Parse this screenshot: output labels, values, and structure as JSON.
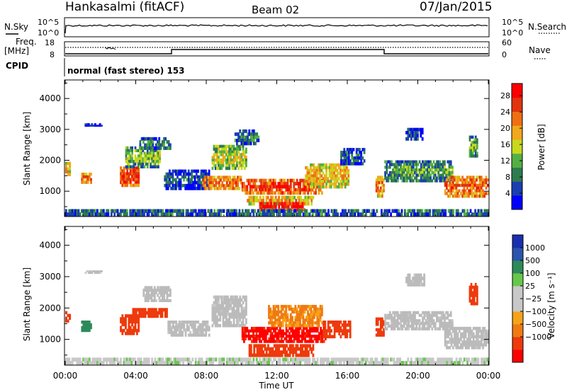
{
  "header": {
    "radar": "Hankasalmi (fitACF)",
    "beam": "Beam 02",
    "date": "07/Jan/2015"
  },
  "status_panels": {
    "nsky_label": "N.Sky",
    "nsearch_label": "N.Search",
    "nsky_ticks": [
      "10^5",
      "10^0"
    ],
    "nsearch_ticks": [
      "10^5",
      "10^0"
    ],
    "freq_label_line1": "Freq.",
    "freq_label_line2": "[MHz]",
    "freq_ticks": [
      "18",
      "8"
    ],
    "nave_label": "Nave",
    "nave_ticks": [
      "60",
      "0"
    ],
    "cpid_label": "CPID",
    "cpid_text": "normal (fast stereo) 153"
  },
  "colors": {
    "power_scale": [
      "#0000ff",
      "#1a3fb0",
      "#2e7b4f",
      "#55b043",
      "#c7d81e",
      "#f0a81c",
      "#ee6f14",
      "#e0340f",
      "#ff0000"
    ],
    "velocity_scale": [
      "#ff0000",
      "#ee3a0c",
      "#f07a12",
      "#f6a31a",
      "#c8c8c8",
      "#c8c8c8",
      "#66c84a",
      "#2e8a5a",
      "#2a54ad",
      "#1a2fb0"
    ],
    "ground_scatter": "#bbbbbb"
  },
  "chart_data": [
    {
      "type": "heatmap",
      "name": "power-panel",
      "ylabel": "Slant Range [km]",
      "xlim": [
        0,
        24
      ],
      "ylim": [
        180,
        4600
      ],
      "y_ticks": [
        1000,
        2000,
        3000,
        4000
      ],
      "colorbar": {
        "label": "Power [dB]",
        "ticks": [
          "4",
          "8",
          "12",
          "16",
          "20",
          "24",
          "28"
        ],
        "range": [
          0,
          31
        ]
      },
      "regions": [
        {
          "t0": 0.0,
          "t1": 0.3,
          "r0": 1500,
          "r1": 1950,
          "v": 19
        },
        {
          "t0": 0.9,
          "t1": 1.5,
          "r0": 1250,
          "r1": 1600,
          "v": 24
        },
        {
          "t0": 1.1,
          "t1": 2.1,
          "r0": 3100,
          "r1": 3200,
          "v": 5
        },
        {
          "t0": 3.1,
          "t1": 4.2,
          "r0": 1150,
          "r1": 1800,
          "v": 27
        },
        {
          "t0": 3.4,
          "t1": 5.4,
          "r0": 1750,
          "r1": 2450,
          "v": 14
        },
        {
          "t0": 4.2,
          "t1": 6.0,
          "r0": 2350,
          "r1": 2750,
          "v": 10
        },
        {
          "t0": 5.6,
          "t1": 8.2,
          "r0": 1050,
          "r1": 1700,
          "v": 7
        },
        {
          "t0": 7.8,
          "t1": 10.0,
          "r0": 1050,
          "r1": 1500,
          "v": 24
        },
        {
          "t0": 8.3,
          "t1": 10.3,
          "r0": 1700,
          "r1": 2500,
          "v": 16
        },
        {
          "t0": 9.6,
          "t1": 11.0,
          "r0": 2500,
          "r1": 3000,
          "v": 9
        },
        {
          "t0": 10.0,
          "t1": 14.6,
          "r0": 900,
          "r1": 1400,
          "v": 27
        },
        {
          "t0": 10.3,
          "t1": 14.1,
          "r0": 550,
          "r1": 850,
          "v": 20
        },
        {
          "t0": 11.0,
          "t1": 13.6,
          "r0": 350,
          "r1": 650,
          "v": 29
        },
        {
          "t0": 13.6,
          "t1": 16.1,
          "r0": 1100,
          "r1": 1900,
          "v": 20
        },
        {
          "t0": 15.6,
          "t1": 17.0,
          "r0": 1850,
          "r1": 2400,
          "v": 8
        },
        {
          "t0": 17.6,
          "t1": 18.1,
          "r0": 800,
          "r1": 1500,
          "v": 22
        },
        {
          "t0": 18.1,
          "t1": 22.0,
          "r0": 1300,
          "r1": 2000,
          "v": 12
        },
        {
          "t0": 19.3,
          "t1": 20.3,
          "r0": 2650,
          "r1": 3050,
          "v": 8
        },
        {
          "t0": 21.5,
          "t1": 24.0,
          "r0": 800,
          "r1": 1500,
          "v": 25
        },
        {
          "t0": 22.9,
          "t1": 23.4,
          "r0": 2100,
          "r1": 2800,
          "v": 13
        },
        {
          "t0": 0.0,
          "t1": 24.0,
          "r0": 200,
          "r1": 420,
          "v": 9
        }
      ]
    },
    {
      "type": "heatmap",
      "name": "velocity-panel",
      "ylabel": "Slant Range [km]",
      "xlabel": "Time UT",
      "xlim": [
        0,
        24
      ],
      "ylim": [
        180,
        4600
      ],
      "y_ticks": [
        1000,
        2000,
        3000,
        4000
      ],
      "x_ticks": [
        "00:00",
        "04:00",
        "08:00",
        "12:00",
        "16:00",
        "20:00",
        "00:00"
      ],
      "colorbar": {
        "label": "Velocity [m s⁻¹]",
        "ticks": [
          "1000",
          "500",
          "100",
          "25",
          "−25",
          "−100",
          "−500",
          "−1000"
        ]
      },
      "regions": [
        {
          "t0": 0.0,
          "t1": 0.3,
          "r0": 1550,
          "r1": 1900,
          "v": -200
        },
        {
          "t0": 0.9,
          "t1": 1.5,
          "r0": 1250,
          "r1": 1600,
          "v": 300
        },
        {
          "t0": 1.1,
          "t1": 2.1,
          "r0": 3100,
          "r1": 3200,
          "v": 0,
          "gs": true
        },
        {
          "t0": 3.1,
          "t1": 4.2,
          "r0": 1150,
          "r1": 1800,
          "v": -300
        },
        {
          "t0": 3.8,
          "t1": 5.8,
          "r0": 1700,
          "r1": 2000,
          "v": -300
        },
        {
          "t0": 4.4,
          "t1": 6.0,
          "r0": 2200,
          "r1": 2700,
          "v": 0,
          "gs": true
        },
        {
          "t0": 5.8,
          "t1": 8.2,
          "r0": 1100,
          "r1": 1600,
          "v": 0,
          "gs": true
        },
        {
          "t0": 8.3,
          "t1": 10.3,
          "r0": 1400,
          "r1": 2400,
          "v": 0,
          "gs": true
        },
        {
          "t0": 10.0,
          "t1": 14.8,
          "r0": 900,
          "r1": 1400,
          "v": -700
        },
        {
          "t0": 10.4,
          "t1": 14.1,
          "r0": 450,
          "r1": 850,
          "v": -300
        },
        {
          "t0": 11.5,
          "t1": 14.6,
          "r0": 1400,
          "r1": 2100,
          "v": -60
        },
        {
          "t0": 14.6,
          "t1": 16.2,
          "r0": 1050,
          "r1": 1600,
          "v": -300
        },
        {
          "t0": 17.6,
          "t1": 18.1,
          "r0": 1100,
          "r1": 1700,
          "v": -300
        },
        {
          "t0": 18.1,
          "t1": 22.0,
          "r0": 1300,
          "r1": 1900,
          "v": 0,
          "gs": true
        },
        {
          "t0": 19.3,
          "t1": 20.4,
          "r0": 2700,
          "r1": 3100,
          "v": 0,
          "gs": true
        },
        {
          "t0": 21.5,
          "t1": 24.0,
          "r0": 700,
          "r1": 1400,
          "v": 0,
          "gs": true
        },
        {
          "t0": 22.9,
          "t1": 23.4,
          "r0": 2100,
          "r1": 2800,
          "v": -300
        },
        {
          "t0": 0.0,
          "t1": 24.0,
          "r0": 200,
          "r1": 420,
          "v": 40
        }
      ]
    }
  ]
}
